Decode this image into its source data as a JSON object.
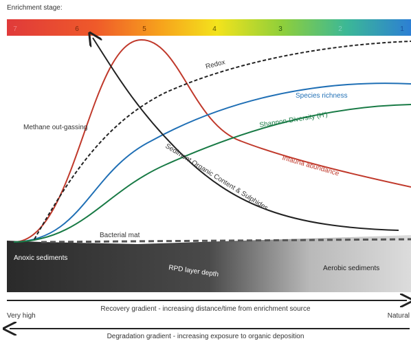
{
  "header": {
    "title": "Enrichment stage:",
    "stages": [
      7,
      6,
      5,
      4,
      3,
      2,
      1
    ]
  },
  "curves": {
    "redox": "Redox",
    "species": "Species richness",
    "shannon": "Shannon-Diversity (H')",
    "infauna": "Infauna abundance",
    "sediment": "Sediment Organic Content & Sulphides"
  },
  "labels": {
    "methane": "Methane out-gassing",
    "bacterial": "Bacterial mat",
    "anoxic": "Anoxic sediments",
    "rpd": "RPD layer depth",
    "aerobic": "Aerobic sediments"
  },
  "gradients": {
    "recovery": "Recovery gradient - increasing distance/time from enrichment source",
    "left": "Very high",
    "right": "Natural",
    "degradation": "Degradation gradient - increasing exposure to organic deposition"
  }
}
